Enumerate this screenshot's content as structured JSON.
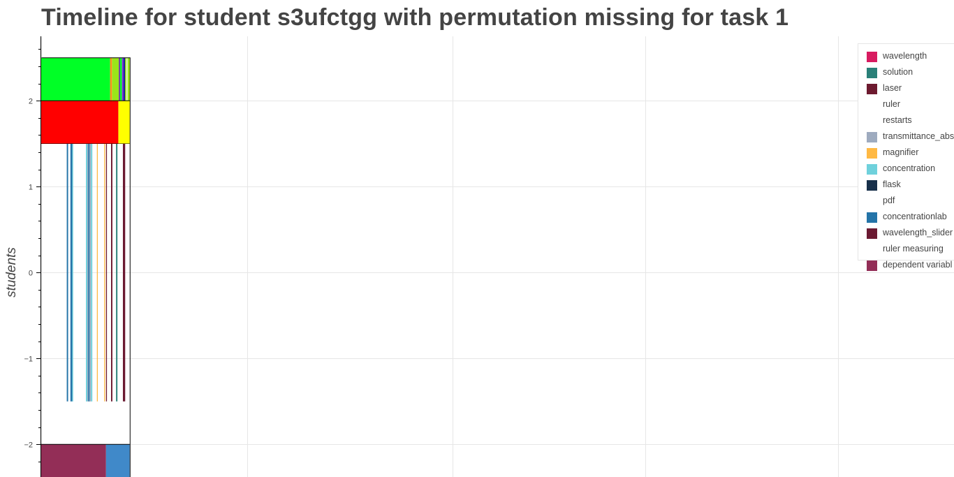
{
  "chart_data": {
    "type": "timeline",
    "title": "Timeline for student s3ufctgg with permutation missing for task 1",
    "ylabel": "students",
    "xlabel": "",
    "ylim": [
      -2.38,
      2.75
    ],
    "xlim": [
      0,
      100
    ],
    "y_ticks": [
      2,
      1,
      0,
      -1,
      -2
    ],
    "y_tick_labels": [
      "2",
      "1",
      "0",
      "−1",
      "−2"
    ],
    "grid": true,
    "legend_position": "top-right",
    "legend": [
      {
        "label": "wavelength",
        "color": "#d81b60"
      },
      {
        "label": "solution",
        "color": "#2a8078"
      },
      {
        "label": "laser",
        "color": "#6d1a2f"
      },
      {
        "label": "ruler",
        "color": "#ffffff"
      },
      {
        "label": "restarts",
        "color": "#ffffff"
      },
      {
        "label": "transmittance_abs",
        "color": "#9eabbf"
      },
      {
        "label": "magnifier",
        "color": "#ffb943"
      },
      {
        "label": "concentration",
        "color": "#6fd1dc"
      },
      {
        "label": "flask",
        "color": "#17304a"
      },
      {
        "label": "pdf",
        "color": "#ffffff"
      },
      {
        "label": "concentrationlab",
        "color": "#2474a8"
      },
      {
        "label": "wavelength_slider",
        "color": "#6b1a32"
      },
      {
        "label": "ruler measuring",
        "color": "#ffffff"
      },
      {
        "label": "dependent variabl",
        "color": "#932e57"
      }
    ],
    "segments": [
      {
        "y0": 2.0,
        "y1": 2.5,
        "x0": 0.0,
        "x1": 7.55,
        "color": "#00ff26"
      },
      {
        "y0": 2.0,
        "y1": 2.5,
        "x0": 7.55,
        "x1": 7.75,
        "color": "#ff8c1a"
      },
      {
        "y0": 2.0,
        "y1": 2.5,
        "x0": 7.75,
        "x1": 8.5,
        "color": "#9ae61a"
      },
      {
        "y0": 2.0,
        "y1": 2.5,
        "x0": 8.5,
        "x1": 8.65,
        "color": "#6b3fa0"
      },
      {
        "y0": 2.0,
        "y1": 2.5,
        "x0": 8.65,
        "x1": 8.85,
        "color": "#00ff26"
      },
      {
        "y0": 2.0,
        "y1": 2.5,
        "x0": 8.85,
        "x1": 9.0,
        "color": "#8a2be2"
      },
      {
        "y0": 2.0,
        "y1": 2.5,
        "x0": 9.0,
        "x1": 9.2,
        "color": "#1e1e9e"
      },
      {
        "y0": 2.0,
        "y1": 2.5,
        "x0": 9.2,
        "x1": 9.35,
        "color": "#9ae61a"
      },
      {
        "y0": 2.0,
        "y1": 2.5,
        "x0": 9.35,
        "x1": 9.45,
        "color": "#ffffff"
      },
      {
        "y0": 2.0,
        "y1": 2.5,
        "x0": 9.45,
        "x1": 9.7,
        "color": "#9ae61a"
      },
      {
        "y0": 1.5,
        "y1": 2.0,
        "x0": 0.0,
        "x1": 8.45,
        "color": "#ff0000"
      },
      {
        "y0": 1.5,
        "y1": 2.0,
        "x0": 8.45,
        "x1": 9.7,
        "color": "#ffff00"
      },
      {
        "y0": -1.5,
        "y1": 1.5,
        "x0": 2.8,
        "x1": 2.95,
        "color": "#2474a8"
      },
      {
        "y0": -1.5,
        "y1": 1.5,
        "x0": 3.2,
        "x1": 3.4,
        "color": "#2474a8"
      },
      {
        "y0": -1.5,
        "y1": 1.5,
        "x0": 3.4,
        "x1": 3.5,
        "color": "#6fd1dc"
      },
      {
        "y0": -1.5,
        "y1": 1.5,
        "x0": 4.9,
        "x1": 5.05,
        "color": "#6fd1dc"
      },
      {
        "y0": -1.5,
        "y1": 1.5,
        "x0": 5.05,
        "x1": 5.15,
        "color": "#9eabbf"
      },
      {
        "y0": -1.5,
        "y1": 1.5,
        "x0": 5.15,
        "x1": 5.3,
        "color": "#2474a8"
      },
      {
        "y0": -1.5,
        "y1": 1.5,
        "x0": 5.3,
        "x1": 5.45,
        "color": "#9eabbf"
      },
      {
        "y0": -1.5,
        "y1": 1.5,
        "x0": 5.45,
        "x1": 5.6,
        "color": "#6fd1dc"
      },
      {
        "y0": -1.5,
        "y1": 1.5,
        "x0": 6.1,
        "x1": 6.2,
        "color": "#ffb943"
      },
      {
        "y0": -1.5,
        "y1": 1.5,
        "x0": 6.9,
        "x1": 7.0,
        "color": "#ffb943"
      },
      {
        "y0": -1.5,
        "y1": 1.5,
        "x0": 7.1,
        "x1": 7.2,
        "color": "#6d1a2f"
      },
      {
        "y0": -1.5,
        "y1": 1.5,
        "x0": 7.65,
        "x1": 7.8,
        "color": "#6d1a2f"
      },
      {
        "y0": -1.5,
        "y1": 1.5,
        "x0": 8.2,
        "x1": 8.35,
        "color": "#2a8078"
      },
      {
        "y0": -1.5,
        "y1": 1.5,
        "x0": 8.95,
        "x1": 9.2,
        "color": "#6b1a32"
      },
      {
        "y0": -2.38,
        "y1": -2.0,
        "x0": 0.0,
        "x1": 7.1,
        "color": "#932e57"
      },
      {
        "y0": -2.38,
        "y1": -2.0,
        "x0": 7.1,
        "x1": 9.7,
        "color": "#4089c9"
      }
    ]
  }
}
